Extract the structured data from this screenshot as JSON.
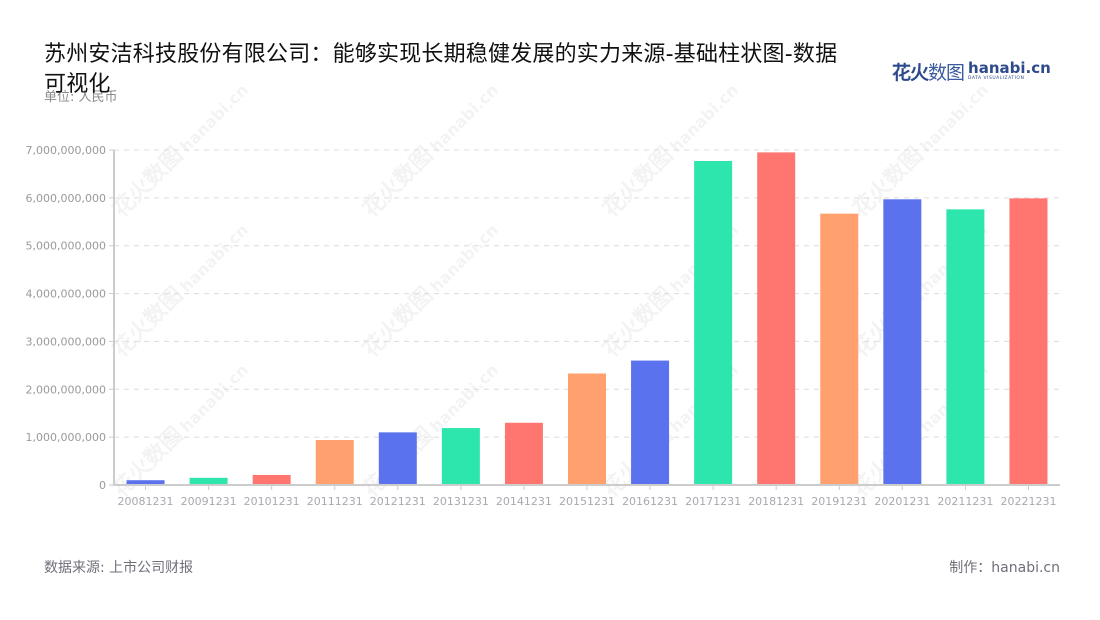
{
  "header": {
    "title": "苏州安洁科技股份有限公司：能够实现长期稳健发展的实力来源-基础柱状图-数据可视化",
    "unit_label": "单位: 人民币",
    "logo": {
      "cn_bold": "花火",
      "cn_light": "数图",
      "en": "hanabi.cn",
      "tagline": "DATA VISUALIZATION"
    }
  },
  "footer": {
    "source": "数据来源: 上市公司财报",
    "credit": "制作：hanabi.cn"
  },
  "watermark": {
    "text_cn": "花火数图",
    "text_en": "hanabi.cn"
  },
  "colors": {
    "blue": "#5A72EE",
    "green": "#2DE6AE",
    "red": "#FF7670",
    "orange": "#FFA06E",
    "grid": "#dcdcdc",
    "axis": "#cccccc"
  },
  "chart_data": {
    "type": "bar",
    "title": "苏州安洁科技股份有限公司：能够实现长期稳健发展的实力来源-基础柱状图-数据可视化",
    "xlabel": "",
    "ylabel": "单位: 人民币",
    "ylim": [
      0,
      7000000000
    ],
    "yticks": [
      0,
      1000000000,
      2000000000,
      3000000000,
      4000000000,
      5000000000,
      6000000000,
      7000000000
    ],
    "ytick_labels": [
      "0",
      "1,000,000,000",
      "2,000,000,000",
      "3,000,000,000",
      "4,000,000,000",
      "5,000,000,000",
      "6,000,000,000",
      "7,000,000,000"
    ],
    "grid": "horizontal dashed",
    "legend": "none",
    "categories": [
      "20081231",
      "20091231",
      "20101231",
      "20111231",
      "20121231",
      "20131231",
      "20141231",
      "20151231",
      "20161231",
      "20171231",
      "20181231",
      "20191231",
      "20201231",
      "20211231",
      "20221231"
    ],
    "values": [
      100000000,
      150000000,
      210000000,
      940000000,
      1100000000,
      1190000000,
      1300000000,
      2330000000,
      2600000000,
      6770000000,
      6950000000,
      5670000000,
      5970000000,
      5760000000,
      5990000000
    ],
    "bar_colors": [
      "blue",
      "green",
      "red",
      "orange",
      "blue",
      "green",
      "red",
      "orange",
      "blue",
      "green",
      "red",
      "orange",
      "blue",
      "green",
      "red"
    ]
  }
}
